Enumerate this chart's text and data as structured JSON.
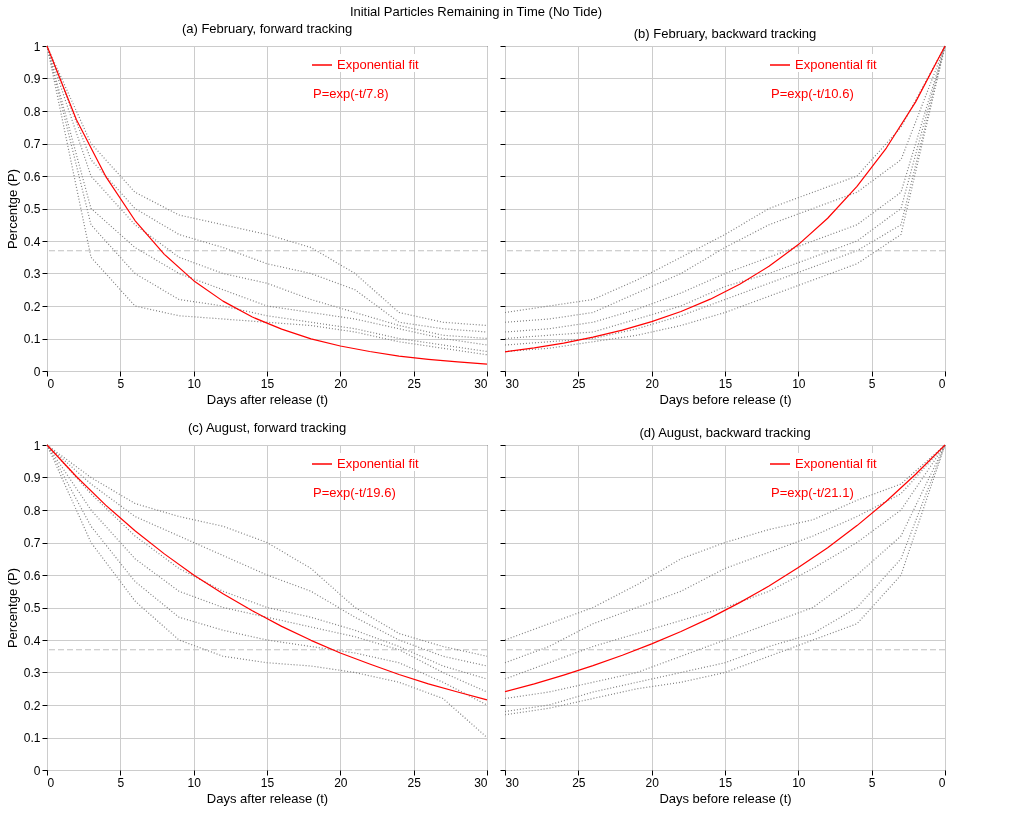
{
  "chart_data": [
    {
      "type": "line",
      "title": "Initial Particles Remaining in Time (No Tide)",
      "subtitle": "(a) February, forward tracking",
      "xlabel": "Days after release (t)",
      "ylabel": "Percentge (P)",
      "xlim": [
        0,
        30
      ],
      "ylim": [
        0,
        1
      ],
      "xticks": [
        0,
        5,
        10,
        15,
        20,
        25,
        30
      ],
      "yticks": [
        0,
        0.1,
        0.2,
        0.3,
        0.4,
        0.5,
        0.6,
        0.7,
        0.8,
        0.9,
        1
      ],
      "grid": true,
      "legend": "top right",
      "annotations": [
        "P=exp(-t/7.8)"
      ],
      "ref_lines": [
        {
          "axis": "y",
          "value": 0.37,
          "color": "#c0c0c0",
          "line_style": "dashed"
        }
      ],
      "series": [
        {
          "color": "#808080",
          "line_style": "dotted",
          "x": [
            0,
            3,
            6,
            9,
            12,
            15,
            18,
            21,
            24,
            27,
            30
          ],
          "values": [
            1,
            0.7,
            0.55,
            0.48,
            0.45,
            0.42,
            0.38,
            0.3,
            0.18,
            0.15,
            0.14
          ]
        },
        {
          "color": "#808080",
          "line_style": "dotted",
          "x": [
            0,
            3,
            6,
            9,
            12,
            15,
            18,
            21,
            24,
            27,
            30
          ],
          "values": [
            1,
            0.65,
            0.5,
            0.42,
            0.38,
            0.33,
            0.3,
            0.25,
            0.15,
            0.13,
            0.12
          ]
        },
        {
          "color": "#808080",
          "line_style": "dotted",
          "x": [
            0,
            3,
            6,
            9,
            12,
            15,
            18,
            21,
            24,
            27,
            30
          ],
          "values": [
            1,
            0.6,
            0.45,
            0.35,
            0.3,
            0.27,
            0.22,
            0.18,
            0.14,
            0.11,
            0.1
          ]
        },
        {
          "color": "#808080",
          "line_style": "dotted",
          "x": [
            0,
            3,
            6,
            9,
            12,
            15,
            18,
            21,
            24,
            27,
            30
          ],
          "values": [
            1,
            0.5,
            0.38,
            0.3,
            0.25,
            0.2,
            0.18,
            0.16,
            0.13,
            0.1,
            0.08
          ]
        },
        {
          "color": "#808080",
          "line_style": "dotted",
          "x": [
            0,
            3,
            6,
            9,
            12,
            15,
            18,
            21,
            24,
            27,
            30
          ],
          "values": [
            1,
            0.45,
            0.3,
            0.22,
            0.2,
            0.17,
            0.15,
            0.13,
            0.1,
            0.08,
            0.06
          ]
        },
        {
          "color": "#808080",
          "line_style": "dotted",
          "x": [
            0,
            3,
            6,
            9,
            12,
            15,
            18,
            21,
            24,
            27,
            30
          ],
          "values": [
            1,
            0.35,
            0.2,
            0.17,
            0.16,
            0.15,
            0.14,
            0.12,
            0.09,
            0.07,
            0.05
          ]
        },
        {
          "name": "Exponential fit",
          "color": "#ff0000",
          "line_style": "solid",
          "x": [
            0,
            2,
            4,
            6,
            8,
            10,
            12,
            14,
            16,
            18,
            20,
            22,
            24,
            26,
            28,
            30
          ],
          "values": [
            1,
            0.774,
            0.599,
            0.463,
            0.359,
            0.278,
            0.215,
            0.166,
            0.129,
            0.099,
            0.077,
            0.06,
            0.046,
            0.036,
            0.028,
            0.021
          ]
        }
      ]
    },
    {
      "type": "line",
      "subtitle": "(b) February, backward tracking",
      "xlabel": "Days before release (t)",
      "xlim": [
        30,
        0
      ],
      "ylim": [
        0,
        1
      ],
      "xticks": [
        30,
        25,
        20,
        15,
        10,
        5,
        0
      ],
      "yticks": [
        0,
        0.1,
        0.2,
        0.3,
        0.4,
        0.5,
        0.6,
        0.7,
        0.8,
        0.9,
        1
      ],
      "tick_labels": "x",
      "grid": true,
      "legend": "top right",
      "annotations": [
        "P=exp(-t/10.6)"
      ],
      "ref_lines": [
        {
          "axis": "y",
          "value": 0.37,
          "color": "#c0c0c0",
          "line_style": "dashed"
        }
      ],
      "series": [
        {
          "color": "#808080",
          "line_style": "dotted",
          "x": [
            0,
            3,
            6,
            9,
            12,
            15,
            18,
            21,
            24,
            27,
            30
          ],
          "values": [
            1,
            0.75,
            0.6,
            0.55,
            0.5,
            0.42,
            0.35,
            0.28,
            0.22,
            0.2,
            0.18
          ]
        },
        {
          "color": "#808080",
          "line_style": "dotted",
          "x": [
            0,
            3,
            6,
            9,
            12,
            15,
            18,
            21,
            24,
            27,
            30
          ],
          "values": [
            1,
            0.65,
            0.55,
            0.5,
            0.45,
            0.38,
            0.3,
            0.24,
            0.18,
            0.16,
            0.15
          ]
        },
        {
          "color": "#808080",
          "line_style": "dotted",
          "x": [
            0,
            3,
            6,
            9,
            12,
            15,
            18,
            21,
            24,
            27,
            30
          ],
          "values": [
            1,
            0.55,
            0.45,
            0.4,
            0.35,
            0.3,
            0.24,
            0.19,
            0.15,
            0.13,
            0.12
          ]
        },
        {
          "color": "#808080",
          "line_style": "dotted",
          "x": [
            0,
            3,
            6,
            9,
            12,
            15,
            18,
            21,
            24,
            27,
            30
          ],
          "values": [
            1,
            0.5,
            0.4,
            0.35,
            0.3,
            0.26,
            0.2,
            0.16,
            0.12,
            0.11,
            0.1
          ]
        },
        {
          "color": "#808080",
          "line_style": "dotted",
          "x": [
            0,
            3,
            6,
            9,
            12,
            15,
            18,
            21,
            24,
            27,
            30
          ],
          "values": [
            1,
            0.45,
            0.37,
            0.32,
            0.27,
            0.22,
            0.17,
            0.13,
            0.1,
            0.09,
            0.08
          ]
        },
        {
          "color": "#808080",
          "line_style": "dotted",
          "x": [
            0,
            3,
            6,
            9,
            12,
            15,
            18,
            21,
            24,
            27,
            30
          ],
          "values": [
            1,
            0.42,
            0.33,
            0.28,
            0.23,
            0.18,
            0.14,
            0.11,
            0.09,
            0.07,
            0.06
          ]
        },
        {
          "name": "Exponential fit",
          "color": "#ff0000",
          "line_style": "solid",
          "x": [
            0,
            2,
            4,
            6,
            8,
            10,
            12,
            14,
            16,
            18,
            20,
            22,
            24,
            26,
            28,
            30
          ],
          "values": [
            1,
            0.828,
            0.686,
            0.568,
            0.47,
            0.389,
            0.322,
            0.267,
            0.221,
            0.183,
            0.152,
            0.126,
            0.104,
            0.086,
            0.071,
            0.059
          ]
        }
      ]
    },
    {
      "type": "line",
      "subtitle": "(c) August, forward tracking",
      "xlabel": "Days after release (t)",
      "ylabel": "Percentge (P)",
      "xlim": [
        0,
        30
      ],
      "ylim": [
        0,
        1
      ],
      "xticks": [
        0,
        5,
        10,
        15,
        20,
        25,
        30
      ],
      "yticks": [
        0,
        0.1,
        0.2,
        0.3,
        0.4,
        0.5,
        0.6,
        0.7,
        0.8,
        0.9,
        1
      ],
      "grid": true,
      "legend": "top right",
      "annotations": [
        "P=exp(-t/19.6)"
      ],
      "ref_lines": [
        {
          "axis": "y",
          "value": 0.37,
          "color": "#c0c0c0",
          "line_style": "dashed"
        }
      ],
      "series": [
        {
          "color": "#808080",
          "line_style": "dotted",
          "x": [
            0,
            3,
            6,
            9,
            12,
            15,
            18,
            21,
            24,
            27,
            30
          ],
          "values": [
            1,
            0.9,
            0.82,
            0.78,
            0.75,
            0.7,
            0.62,
            0.5,
            0.42,
            0.38,
            0.35
          ]
        },
        {
          "color": "#808080",
          "line_style": "dotted",
          "x": [
            0,
            3,
            6,
            9,
            12,
            15,
            18,
            21,
            24,
            27,
            30
          ],
          "values": [
            1,
            0.88,
            0.78,
            0.72,
            0.66,
            0.6,
            0.55,
            0.47,
            0.4,
            0.35,
            0.32
          ]
        },
        {
          "color": "#808080",
          "line_style": "dotted",
          "x": [
            0,
            3,
            6,
            9,
            12,
            15,
            18,
            21,
            24,
            27,
            30
          ],
          "values": [
            1,
            0.85,
            0.72,
            0.62,
            0.55,
            0.5,
            0.47,
            0.43,
            0.38,
            0.32,
            0.28
          ]
        },
        {
          "color": "#808080",
          "line_style": "dotted",
          "x": [
            0,
            3,
            6,
            9,
            12,
            15,
            18,
            21,
            24,
            27,
            30
          ],
          "values": [
            1,
            0.8,
            0.65,
            0.55,
            0.5,
            0.47,
            0.44,
            0.41,
            0.37,
            0.3,
            0.24
          ]
        },
        {
          "color": "#808080",
          "line_style": "dotted",
          "x": [
            0,
            3,
            6,
            9,
            12,
            15,
            18,
            21,
            24,
            27,
            30
          ],
          "values": [
            1,
            0.75,
            0.58,
            0.47,
            0.43,
            0.4,
            0.38,
            0.36,
            0.33,
            0.27,
            0.2
          ]
        },
        {
          "color": "#808080",
          "line_style": "dotted",
          "x": [
            0,
            3,
            6,
            9,
            12,
            15,
            18,
            21,
            24,
            27,
            30
          ],
          "values": [
            1,
            0.7,
            0.52,
            0.4,
            0.35,
            0.33,
            0.32,
            0.3,
            0.27,
            0.22,
            0.1
          ]
        },
        {
          "name": "Exponential fit",
          "color": "#ff0000",
          "line_style": "solid",
          "x": [
            0,
            2,
            4,
            6,
            8,
            10,
            12,
            14,
            16,
            18,
            20,
            22,
            24,
            26,
            28,
            30
          ],
          "values": [
            1,
            0.903,
            0.815,
            0.736,
            0.665,
            0.6,
            0.542,
            0.49,
            0.442,
            0.399,
            0.36,
            0.326,
            0.294,
            0.265,
            0.24,
            0.216
          ]
        }
      ]
    },
    {
      "type": "line",
      "subtitle": "(d) August, backward tracking",
      "xlabel": "Days before release (t)",
      "xlim": [
        30,
        0
      ],
      "ylim": [
        0,
        1
      ],
      "xticks": [
        30,
        25,
        20,
        15,
        10,
        5,
        0
      ],
      "yticks": [
        0,
        0.1,
        0.2,
        0.3,
        0.4,
        0.5,
        0.6,
        0.7,
        0.8,
        0.9,
        1
      ],
      "tick_labels": "x",
      "grid": true,
      "legend": "top right",
      "annotations": [
        "P=exp(-t/21.1)"
      ],
      "ref_lines": [
        {
          "axis": "y",
          "value": 0.37,
          "color": "#c0c0c0",
          "line_style": "dashed"
        }
      ],
      "series": [
        {
          "color": "#808080",
          "line_style": "dotted",
          "x": [
            0,
            3,
            6,
            9,
            12,
            15,
            18,
            21,
            24,
            27,
            30
          ],
          "values": [
            1,
            0.88,
            0.83,
            0.77,
            0.74,
            0.7,
            0.65,
            0.57,
            0.5,
            0.45,
            0.4
          ]
        },
        {
          "color": "#808080",
          "line_style": "dotted",
          "x": [
            0,
            3,
            6,
            9,
            12,
            15,
            18,
            21,
            24,
            27,
            30
          ],
          "values": [
            1,
            0.85,
            0.78,
            0.72,
            0.67,
            0.62,
            0.55,
            0.5,
            0.45,
            0.38,
            0.33
          ]
        },
        {
          "color": "#808080",
          "line_style": "dotted",
          "x": [
            0,
            3,
            6,
            9,
            12,
            15,
            18,
            21,
            24,
            27,
            30
          ],
          "values": [
            1,
            0.8,
            0.7,
            0.62,
            0.55,
            0.5,
            0.46,
            0.42,
            0.38,
            0.33,
            0.28
          ]
        },
        {
          "color": "#808080",
          "line_style": "dotted",
          "x": [
            0,
            3,
            6,
            9,
            12,
            15,
            18,
            21,
            24,
            27,
            30
          ],
          "values": [
            1,
            0.72,
            0.6,
            0.5,
            0.45,
            0.4,
            0.35,
            0.3,
            0.27,
            0.24,
            0.22
          ]
        },
        {
          "color": "#808080",
          "line_style": "dotted",
          "x": [
            0,
            3,
            6,
            9,
            12,
            15,
            18,
            21,
            24,
            27,
            30
          ],
          "values": [
            1,
            0.65,
            0.5,
            0.42,
            0.38,
            0.33,
            0.3,
            0.27,
            0.24,
            0.2,
            0.18
          ]
        },
        {
          "color": "#808080",
          "line_style": "dotted",
          "x": [
            0,
            3,
            6,
            9,
            12,
            15,
            18,
            21,
            24,
            27,
            30
          ],
          "values": [
            1,
            0.6,
            0.45,
            0.4,
            0.35,
            0.3,
            0.27,
            0.25,
            0.22,
            0.19,
            0.17
          ]
        },
        {
          "name": "Exponential fit",
          "color": "#ff0000",
          "line_style": "solid",
          "x": [
            0,
            2,
            4,
            6,
            8,
            10,
            12,
            14,
            16,
            18,
            20,
            22,
            24,
            26,
            28,
            30
          ],
          "values": [
            1,
            0.91,
            0.827,
            0.752,
            0.684,
            0.623,
            0.566,
            0.515,
            0.468,
            0.426,
            0.388,
            0.353,
            0.321,
            0.292,
            0.265,
            0.241
          ]
        }
      ]
    }
  ]
}
